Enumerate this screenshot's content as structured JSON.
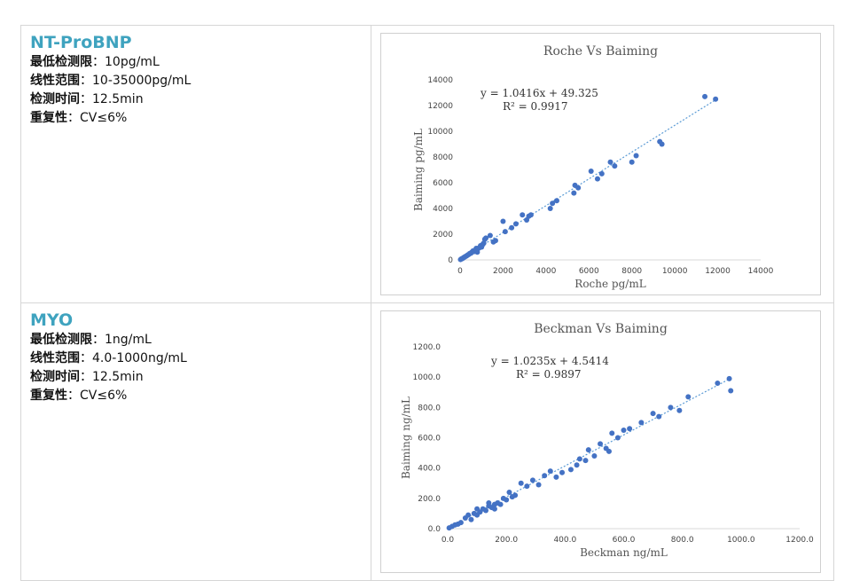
{
  "rows": [
    {
      "name": "NT-ProBNP",
      "specs": [
        {
          "label": "最低检测限",
          "value": "10pg/mL"
        },
        {
          "label": "线性范围",
          "value": "10-35000pg/mL"
        },
        {
          "label": "检测时间",
          "value": "12.5min"
        },
        {
          "label": "重复性",
          "value": "CV≤6%"
        }
      ]
    },
    {
      "name": "MYO",
      "specs": [
        {
          "label": "最低检测限",
          "value": "1ng/mL"
        },
        {
          "label": "线性范围",
          "value": "4.0-1000ng/mL"
        },
        {
          "label": "检测时间",
          "value": "12.5min"
        },
        {
          "label": "重复性",
          "value": "CV≤6%"
        }
      ]
    }
  ],
  "colors": {
    "title": "#3fa3bf",
    "points": "#4472c4",
    "trend": "#5b9bd5"
  },
  "chart_data": [
    {
      "type": "scatter",
      "title": "Roche Vs Baiming",
      "xlabel": "Roche pg/mL",
      "ylabel": "Baiming  pg/mL",
      "xlim": [
        0,
        14000
      ],
      "ylim": [
        0,
        14000
      ],
      "xticks": [
        "0",
        "2000",
        "4000",
        "6000",
        "8000",
        "10000",
        "12000",
        "14000"
      ],
      "yticks": [
        "0",
        "2000",
        "4000",
        "6000",
        "8000",
        "10000",
        "12000",
        "14000"
      ],
      "trendline": {
        "slope": 1.0416,
        "intercept": 49.325,
        "style": "dotted"
      },
      "equation": "y = 1.0416x + 49.325",
      "r2": "R² = 0.9917",
      "grid": false,
      "points": [
        [
          20,
          30
        ],
        [
          60,
          80
        ],
        [
          100,
          100
        ],
        [
          140,
          150
        ],
        [
          180,
          200
        ],
        [
          220,
          230
        ],
        [
          260,
          280
        ],
        [
          300,
          310
        ],
        [
          350,
          380
        ],
        [
          400,
          420
        ],
        [
          450,
          500
        ],
        [
          500,
          520
        ],
        [
          550,
          600
        ],
        [
          600,
          700
        ],
        [
          650,
          650
        ],
        [
          700,
          750
        ],
        [
          750,
          800
        ],
        [
          800,
          850
        ],
        [
          850,
          900
        ],
        [
          900,
          950
        ],
        [
          950,
          1100
        ],
        [
          1000,
          1000
        ],
        [
          1050,
          1200
        ],
        [
          1100,
          1300
        ],
        [
          1150,
          1600
        ],
        [
          1200,
          1700
        ],
        [
          1400,
          1900
        ],
        [
          1650,
          1500
        ],
        [
          1550,
          1400
        ],
        [
          2000,
          3000
        ],
        [
          2100,
          2200
        ],
        [
          2400,
          2500
        ],
        [
          2600,
          2800
        ],
        [
          2900,
          3500
        ],
        [
          3100,
          3100
        ],
        [
          3200,
          3400
        ],
        [
          3300,
          3500
        ],
        [
          4200,
          4000
        ],
        [
          4300,
          4400
        ],
        [
          4500,
          4600
        ],
        [
          5300,
          5200
        ],
        [
          5500,
          5600
        ],
        [
          5350,
          5800
        ],
        [
          6100,
          6900
        ],
        [
          6400,
          6300
        ],
        [
          6600,
          6700
        ],
        [
          7000,
          7600
        ],
        [
          7200,
          7300
        ],
        [
          8000,
          7600
        ],
        [
          8200,
          8100
        ],
        [
          9300,
          9200
        ],
        [
          9400,
          9000
        ],
        [
          11400,
          12700
        ],
        [
          11900,
          12500
        ],
        [
          800,
          600
        ],
        [
          750,
          900
        ]
      ]
    },
    {
      "type": "scatter",
      "title": "Beckman Vs Baiming",
      "xlabel": "Beckman ng/mL",
      "ylabel": "Baiming  ng/mL",
      "xlim": [
        0,
        1200
      ],
      "ylim": [
        0,
        1200
      ],
      "xticks": [
        "0.0",
        "200.0",
        "400.0",
        "600.0",
        "800.0",
        "1000.0",
        "1200.0"
      ],
      "yticks": [
        "0.0",
        "200.0",
        "400.0",
        "600.0",
        "800.0",
        "1000.0",
        "1200.0"
      ],
      "trendline": {
        "slope": 1.0235,
        "intercept": 4.5414,
        "style": "dotted"
      },
      "equation": "y = 1.0235x + 4.5414",
      "r2": "R² = 0.9897",
      "grid": false,
      "points": [
        [
          5,
          5
        ],
        [
          15,
          15
        ],
        [
          25,
          25
        ],
        [
          35,
          30
        ],
        [
          45,
          40
        ],
        [
          60,
          70
        ],
        [
          70,
          90
        ],
        [
          80,
          60
        ],
        [
          90,
          100
        ],
        [
          100,
          90
        ],
        [
          110,
          110
        ],
        [
          120,
          130
        ],
        [
          130,
          120
        ],
        [
          140,
          150
        ],
        [
          150,
          140
        ],
        [
          160,
          160
        ],
        [
          170,
          170
        ],
        [
          180,
          160
        ],
        [
          190,
          200
        ],
        [
          200,
          190
        ],
        [
          210,
          240
        ],
        [
          220,
          210
        ],
        [
          230,
          220
        ],
        [
          250,
          300
        ],
        [
          270,
          280
        ],
        [
          290,
          320
        ],
        [
          310,
          290
        ],
        [
          330,
          350
        ],
        [
          350,
          380
        ],
        [
          370,
          340
        ],
        [
          390,
          370
        ],
        [
          420,
          390
        ],
        [
          440,
          420
        ],
        [
          450,
          460
        ],
        [
          470,
          450
        ],
        [
          480,
          520
        ],
        [
          500,
          480
        ],
        [
          520,
          560
        ],
        [
          540,
          530
        ],
        [
          550,
          510
        ],
        [
          560,
          630
        ],
        [
          580,
          600
        ],
        [
          600,
          650
        ],
        [
          620,
          660
        ],
        [
          660,
          700
        ],
        [
          700,
          760
        ],
        [
          720,
          740
        ],
        [
          760,
          800
        ],
        [
          790,
          780
        ],
        [
          820,
          870
        ],
        [
          920,
          960
        ],
        [
          960,
          990
        ],
        [
          965,
          910
        ],
        [
          140,
          170
        ],
        [
          160,
          130
        ],
        [
          100,
          130
        ]
      ]
    }
  ]
}
